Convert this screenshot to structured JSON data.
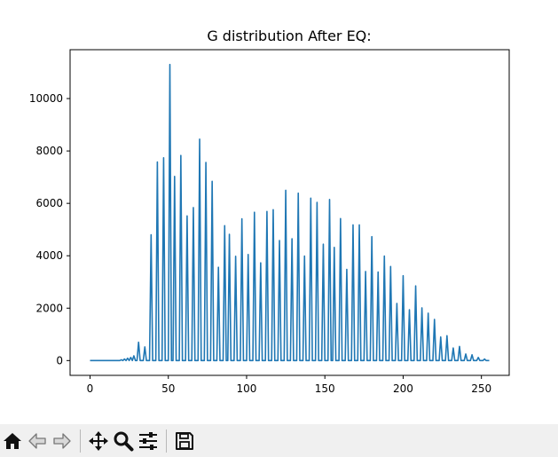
{
  "window": {
    "toolbar": [
      {
        "name": "home",
        "icon": "home-icon"
      },
      {
        "name": "back",
        "icon": "back-arrow-icon"
      },
      {
        "name": "forward",
        "icon": "forward-arrow-icon"
      },
      {
        "name": "pan",
        "icon": "move-icon"
      },
      {
        "name": "zoom",
        "icon": "zoom-icon"
      },
      {
        "name": "configure-subplots",
        "icon": "sliders-icon"
      },
      {
        "name": "save",
        "icon": "save-icon"
      }
    ]
  },
  "chart_data": {
    "type": "line",
    "title": "G distribution After EQ:",
    "xlabel": "",
    "ylabel": "",
    "xlim": [
      -12.75,
      267.75
    ],
    "ylim": [
      -565,
      11865
    ],
    "xticks": [
      0,
      50,
      100,
      150,
      200,
      250
    ],
    "yticks": [
      0,
      2000,
      4000,
      6000,
      8000,
      10000
    ],
    "grid": false,
    "line_color": "#1f77b4",
    "series": [
      {
        "peaks": [
          [
            20,
            30
          ],
          [
            22,
            60
          ],
          [
            24,
            90
          ],
          [
            26,
            120
          ],
          [
            28,
            180
          ],
          [
            31,
            700
          ],
          [
            35,
            520
          ],
          [
            39,
            4800
          ],
          [
            43,
            7580
          ],
          [
            47,
            7740
          ],
          [
            51,
            11300
          ],
          [
            54,
            7030
          ],
          [
            58,
            7830
          ],
          [
            62,
            5520
          ],
          [
            66,
            5840
          ],
          [
            70,
            8450
          ],
          [
            74,
            7560
          ],
          [
            78,
            6840
          ],
          [
            82,
            3560
          ],
          [
            86,
            5150
          ],
          [
            89,
            4820
          ],
          [
            93,
            3980
          ],
          [
            97,
            5410
          ],
          [
            101,
            4050
          ],
          [
            105,
            5660
          ],
          [
            109,
            3730
          ],
          [
            113,
            5690
          ],
          [
            117,
            5760
          ],
          [
            121,
            4580
          ],
          [
            125,
            6500
          ],
          [
            129,
            4650
          ],
          [
            133,
            6390
          ],
          [
            137,
            3990
          ],
          [
            141,
            6200
          ],
          [
            145,
            6040
          ],
          [
            149,
            4440
          ],
          [
            153,
            6150
          ],
          [
            156,
            4320
          ],
          [
            160,
            5420
          ],
          [
            164,
            3480
          ],
          [
            168,
            5180
          ],
          [
            172,
            5180
          ],
          [
            176,
            3400
          ],
          [
            180,
            4730
          ],
          [
            184,
            3380
          ],
          [
            188,
            3990
          ],
          [
            192,
            3590
          ],
          [
            196,
            2180
          ],
          [
            200,
            3240
          ],
          [
            204,
            1940
          ],
          [
            208,
            2850
          ],
          [
            212,
            2010
          ],
          [
            216,
            1810
          ],
          [
            220,
            1570
          ],
          [
            224,
            900
          ],
          [
            228,
            950
          ],
          [
            232,
            480
          ],
          [
            236,
            540
          ],
          [
            240,
            250
          ],
          [
            244,
            220
          ],
          [
            248,
            120
          ],
          [
            252,
            60
          ]
        ]
      }
    ]
  }
}
